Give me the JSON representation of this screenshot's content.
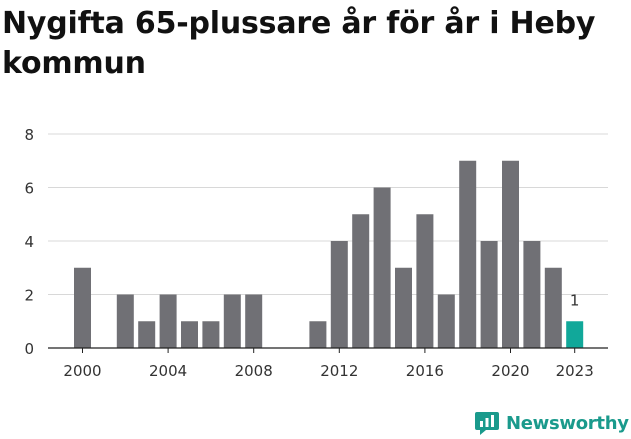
{
  "title": "Nygifta 65-plussare år för år i Heby kommun",
  "logo": {
    "text": "Newsworthy",
    "color": "#1a9a8c"
  },
  "colors": {
    "bar": "#707075",
    "highlight": "#11a89a",
    "grid": "#d8d8d8",
    "axis": "#222222",
    "text": "#333333"
  },
  "chart_data": {
    "type": "bar",
    "title": "Nygifta 65-plussare år för år i Heby kommun",
    "xlabel": "",
    "ylabel": "",
    "categories": [
      "2000",
      "2001",
      "2002",
      "2003",
      "2004",
      "2005",
      "2006",
      "2007",
      "2008",
      "2009",
      "2010",
      "2011",
      "2012",
      "2013",
      "2014",
      "2015",
      "2016",
      "2017",
      "2018",
      "2019",
      "2020",
      "2021",
      "2022",
      "2023"
    ],
    "values": [
      3,
      0,
      2,
      1,
      2,
      1,
      1,
      2,
      2,
      0,
      0,
      1,
      4,
      5,
      6,
      3,
      5,
      2,
      7,
      4,
      7,
      4,
      3,
      1
    ],
    "highlight_category": "2023",
    "highlight_label": "1",
    "x_tick_labels": [
      "2000",
      "2004",
      "2008",
      "2012",
      "2016",
      "2020",
      "2023"
    ],
    "y_ticks": [
      0,
      2,
      4,
      6,
      8
    ],
    "ylim": [
      0,
      8
    ],
    "grid": true,
    "legend": "none"
  }
}
